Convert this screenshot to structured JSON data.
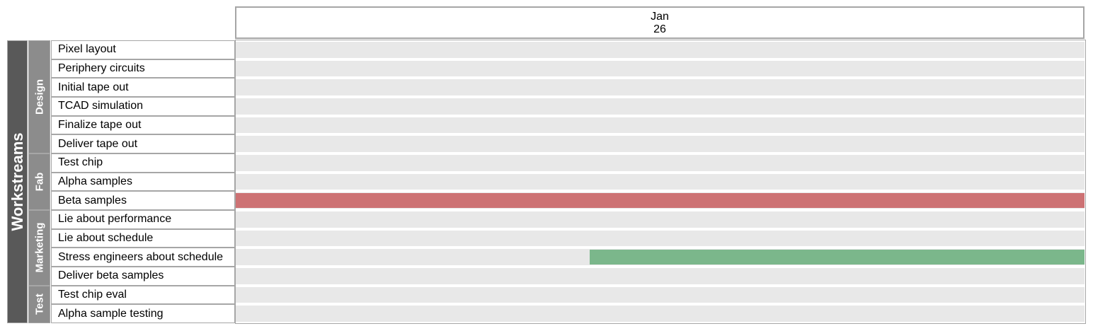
{
  "chart_data": {
    "type": "gantt",
    "title": "",
    "timeline_header": {
      "month": "Jan",
      "day": "26"
    },
    "time_range": [
      "Jan 26 00:00",
      "Jan 27 00:00"
    ],
    "root_label": "Workstreams",
    "groups": [
      {
        "name": "Design",
        "tasks": [
          "Pixel layout",
          "Periphery circuits",
          "Initial tape out",
          "TCAD simulation",
          "Finalize tape out",
          "Deliver tape out"
        ]
      },
      {
        "name": "Fab",
        "tasks": [
          "Test chip",
          "Alpha samples",
          "Beta samples"
        ]
      },
      {
        "name": "Marketing",
        "tasks": [
          "Lie about performance",
          "Lie about schedule",
          "Stress engineers about schedule",
          "Deliver beta samples"
        ]
      },
      {
        "name": "Test",
        "tasks": [
          "Test chip eval",
          "Alpha sample testing"
        ]
      }
    ],
    "bars": [
      {
        "task": "Beta samples",
        "start": 0.0,
        "end": 1.0,
        "color": "#cd7274"
      },
      {
        "task": "Stress engineers about schedule",
        "start": 0.417,
        "end": 1.0,
        "color": "#7bb78b"
      }
    ],
    "colors": {
      "lane": "#e8e8e8",
      "root_fill": "#595959",
      "group_fill": "#8c8c8c",
      "border": "#a6a6a6"
    }
  }
}
